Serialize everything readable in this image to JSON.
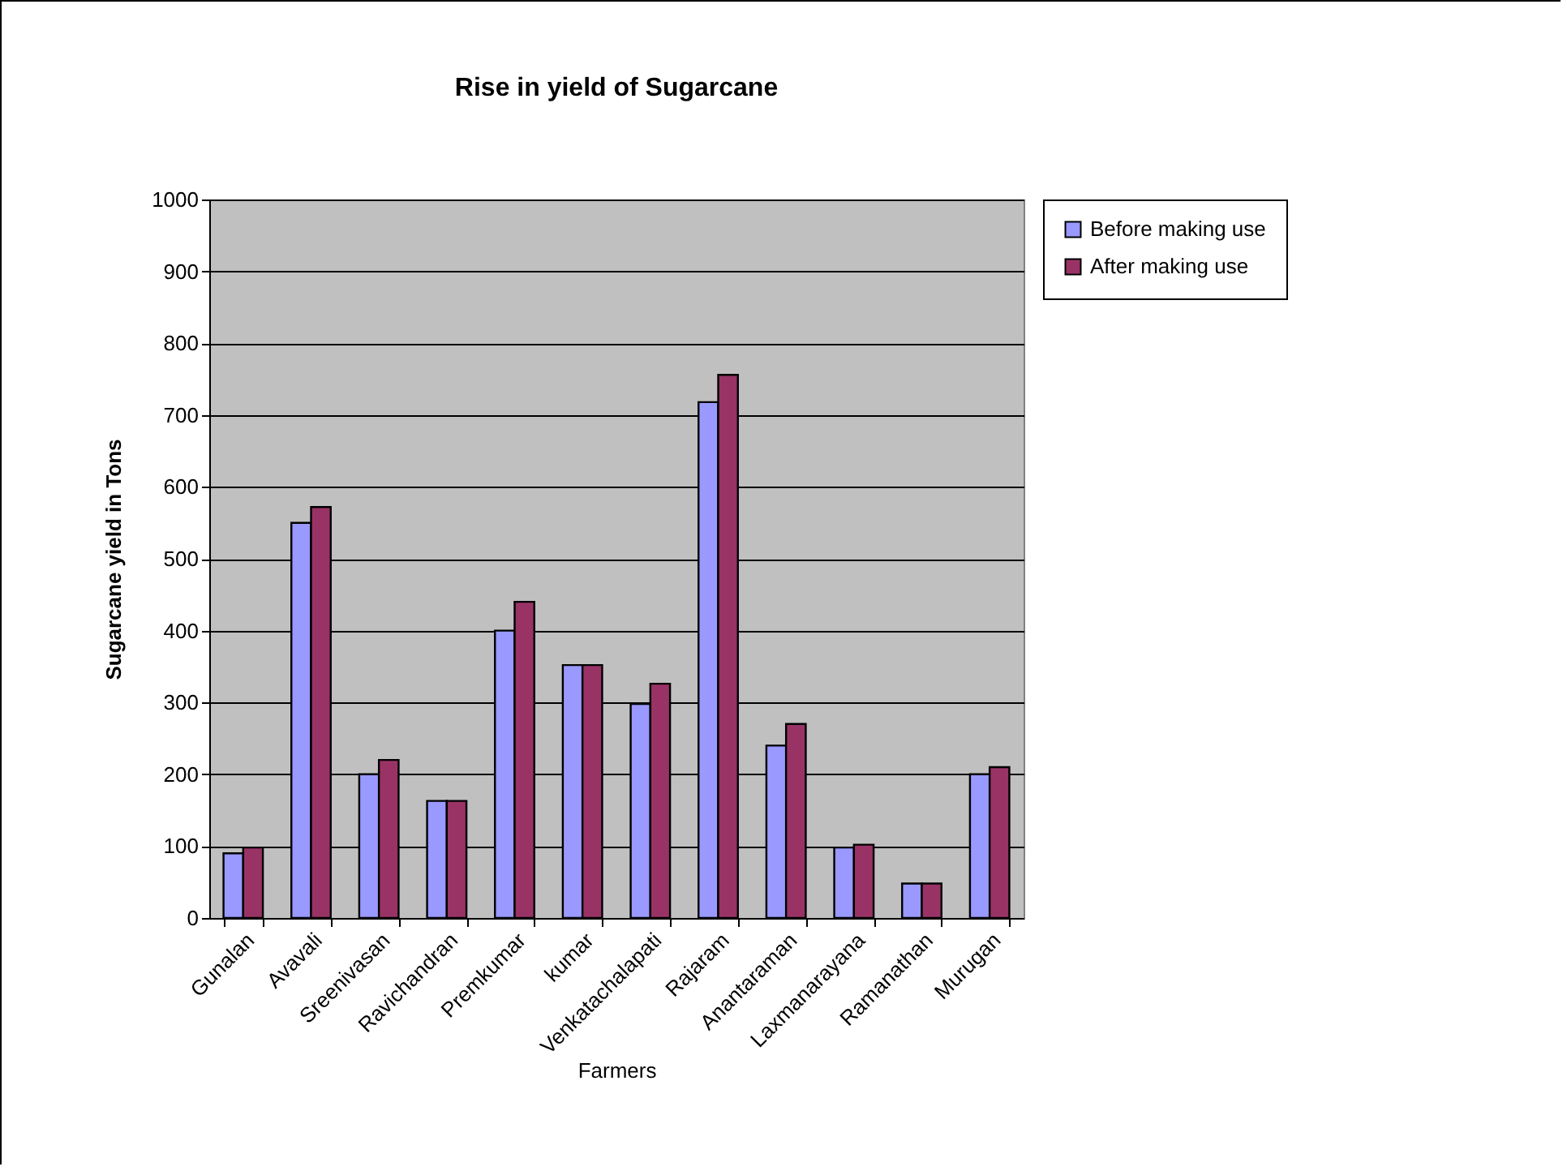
{
  "chart_data": {
    "type": "bar",
    "title": "Rise in yield of Sugarcane",
    "xlabel": "Farmers",
    "ylabel": "Sugarcane yield in Tons",
    "categories": [
      "Gunalan",
      "Avavali",
      "Sreenivasan",
      "Ravichandran",
      "Premkumar",
      "kumar",
      "Venkatachalapati",
      "Rajaram",
      "Anantaraman",
      "Laxmanarayana",
      "Ramanathan",
      "Murugan"
    ],
    "series": [
      {
        "name": "Before making use",
        "color": "#9999ff",
        "values": [
          90,
          550,
          200,
          163,
          400,
          352,
          298,
          718,
          240,
          98,
          48,
          200
        ]
      },
      {
        "name": "After making use",
        "color": "#993366",
        "values": [
          98,
          572,
          220,
          163,
          440,
          352,
          326,
          756,
          270,
          102,
          48,
          210
        ]
      }
    ],
    "ylim": [
      0,
      1000
    ],
    "yticks": [
      0,
      100,
      200,
      300,
      400,
      500,
      600,
      700,
      800,
      900,
      1000
    ],
    "grid": "y",
    "legend": "right"
  }
}
